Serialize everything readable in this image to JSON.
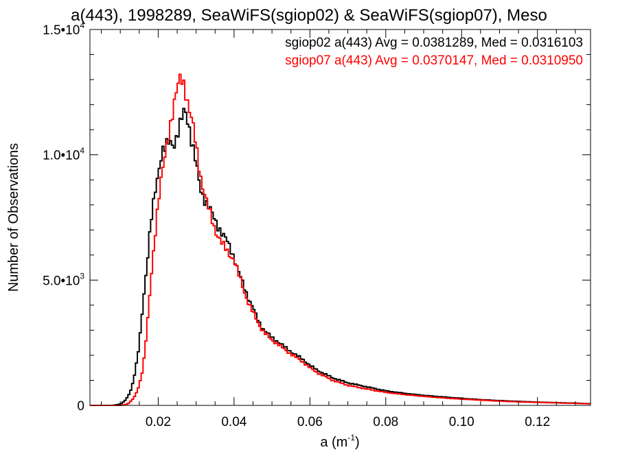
{
  "chart_data": {
    "type": "line",
    "title": "a(443), 1998289, SeaWiFS(sgiop02) & SeaWiFS(sgiop07), Meso",
    "xlabel": "a (m",
    "xlabel_sup": "-1",
    "xlabel_close": ")",
    "ylabel": "Number of Observations",
    "xlim": [
      0.002,
      0.134
    ],
    "ylim": [
      0,
      15000
    ],
    "x_ticks": [
      0.02,
      0.04,
      0.06,
      0.08,
      0.1,
      0.12
    ],
    "x_tick_labels": [
      "0.02",
      "0.04",
      "0.06",
      "0.08",
      "0.10",
      "0.12"
    ],
    "y_ticks": [
      {
        "value": 0,
        "mant": "0",
        "exp": ""
      },
      {
        "value": 5000,
        "mant": "5.0•10",
        "exp": "3"
      },
      {
        "value": 10000,
        "mant": "1.0•10",
        "exp": "4"
      },
      {
        "value": 15000,
        "mant": "1.5•10",
        "exp": "4"
      }
    ],
    "legend_position": "top-right",
    "grid": false,
    "series": [
      {
        "name": "sgiop02",
        "legend": "sgiop02 a(443) Avg = 0.0381289, Med = 0.0316103",
        "color": "#000000",
        "points": [
          [
            0.002,
            0
          ],
          [
            0.008,
            0
          ],
          [
            0.01,
            50
          ],
          [
            0.011,
            150
          ],
          [
            0.012,
            350
          ],
          [
            0.013,
            700
          ],
          [
            0.014,
            1400
          ],
          [
            0.015,
            2400
          ],
          [
            0.016,
            4100
          ],
          [
            0.017,
            5600
          ],
          [
            0.018,
            7200
          ],
          [
            0.019,
            8300
          ],
          [
            0.02,
            9300
          ],
          [
            0.021,
            10200
          ],
          [
            0.022,
            10300
          ],
          [
            0.023,
            10500
          ],
          [
            0.024,
            10400
          ],
          [
            0.025,
            10800
          ],
          [
            0.026,
            11300
          ],
          [
            0.027,
            11800
          ],
          [
            0.028,
            11300
          ],
          [
            0.029,
            10400
          ],
          [
            0.03,
            9600
          ],
          [
            0.031,
            8700
          ],
          [
            0.032,
            8300
          ],
          [
            0.033,
            8000
          ],
          [
            0.034,
            7700
          ],
          [
            0.035,
            7400
          ],
          [
            0.036,
            7100
          ],
          [
            0.037,
            6800
          ],
          [
            0.038,
            6600
          ],
          [
            0.039,
            6300
          ],
          [
            0.04,
            5900
          ],
          [
            0.041,
            5400
          ],
          [
            0.042,
            5000
          ],
          [
            0.043,
            4600
          ],
          [
            0.044,
            4200
          ],
          [
            0.045,
            3900
          ],
          [
            0.046,
            3500
          ],
          [
            0.047,
            3200
          ],
          [
            0.048,
            3000
          ],
          [
            0.05,
            2700
          ],
          [
            0.052,
            2500
          ],
          [
            0.054,
            2250
          ],
          [
            0.056,
            2050
          ],
          [
            0.058,
            1850
          ],
          [
            0.06,
            1600
          ],
          [
            0.062,
            1400
          ],
          [
            0.064,
            1250
          ],
          [
            0.066,
            1100
          ],
          [
            0.068,
            1000
          ],
          [
            0.07,
            900
          ],
          [
            0.075,
            740
          ],
          [
            0.08,
            580
          ],
          [
            0.085,
            480
          ],
          [
            0.09,
            400
          ],
          [
            0.095,
            340
          ],
          [
            0.1,
            280
          ],
          [
            0.105,
            230
          ],
          [
            0.11,
            190
          ],
          [
            0.115,
            160
          ],
          [
            0.12,
            130
          ],
          [
            0.125,
            110
          ],
          [
            0.13,
            90
          ],
          [
            0.134,
            70
          ]
        ]
      },
      {
        "name": "sgiop07",
        "legend": "sgiop07 a(443) Avg = 0.0370147, Med = 0.0310950",
        "color": "#ff0000",
        "points": [
          [
            0.002,
            0
          ],
          [
            0.01,
            0
          ],
          [
            0.011,
            20
          ],
          [
            0.012,
            60
          ],
          [
            0.013,
            200
          ],
          [
            0.014,
            400
          ],
          [
            0.015,
            800
          ],
          [
            0.016,
            1500
          ],
          [
            0.017,
            3000
          ],
          [
            0.018,
            4800
          ],
          [
            0.019,
            6500
          ],
          [
            0.02,
            8200
          ],
          [
            0.021,
            9300
          ],
          [
            0.022,
            10000
          ],
          [
            0.023,
            11000
          ],
          [
            0.024,
            12000
          ],
          [
            0.025,
            12700
          ],
          [
            0.026,
            13000
          ],
          [
            0.027,
            12700
          ],
          [
            0.028,
            12000
          ],
          [
            0.029,
            11300
          ],
          [
            0.03,
            10300
          ],
          [
            0.031,
            9300
          ],
          [
            0.032,
            8600
          ],
          [
            0.033,
            8000
          ],
          [
            0.034,
            7500
          ],
          [
            0.035,
            7000
          ],
          [
            0.036,
            6700
          ],
          [
            0.037,
            6400
          ],
          [
            0.038,
            6200
          ],
          [
            0.039,
            6000
          ],
          [
            0.04,
            5800
          ],
          [
            0.041,
            5300
          ],
          [
            0.042,
            4900
          ],
          [
            0.043,
            4400
          ],
          [
            0.044,
            4000
          ],
          [
            0.045,
            3700
          ],
          [
            0.046,
            3400
          ],
          [
            0.047,
            3100
          ],
          [
            0.048,
            2900
          ],
          [
            0.05,
            2600
          ],
          [
            0.052,
            2400
          ],
          [
            0.054,
            2150
          ],
          [
            0.056,
            1950
          ],
          [
            0.058,
            1750
          ],
          [
            0.06,
            1500
          ],
          [
            0.062,
            1300
          ],
          [
            0.064,
            1150
          ],
          [
            0.066,
            1000
          ],
          [
            0.068,
            900
          ],
          [
            0.07,
            800
          ],
          [
            0.075,
            650
          ],
          [
            0.08,
            520
          ],
          [
            0.085,
            430
          ],
          [
            0.09,
            360
          ],
          [
            0.095,
            300
          ],
          [
            0.1,
            250
          ],
          [
            0.105,
            210
          ],
          [
            0.11,
            170
          ],
          [
            0.115,
            140
          ],
          [
            0.12,
            120
          ],
          [
            0.125,
            100
          ],
          [
            0.13,
            80
          ],
          [
            0.134,
            60
          ]
        ]
      }
    ]
  }
}
